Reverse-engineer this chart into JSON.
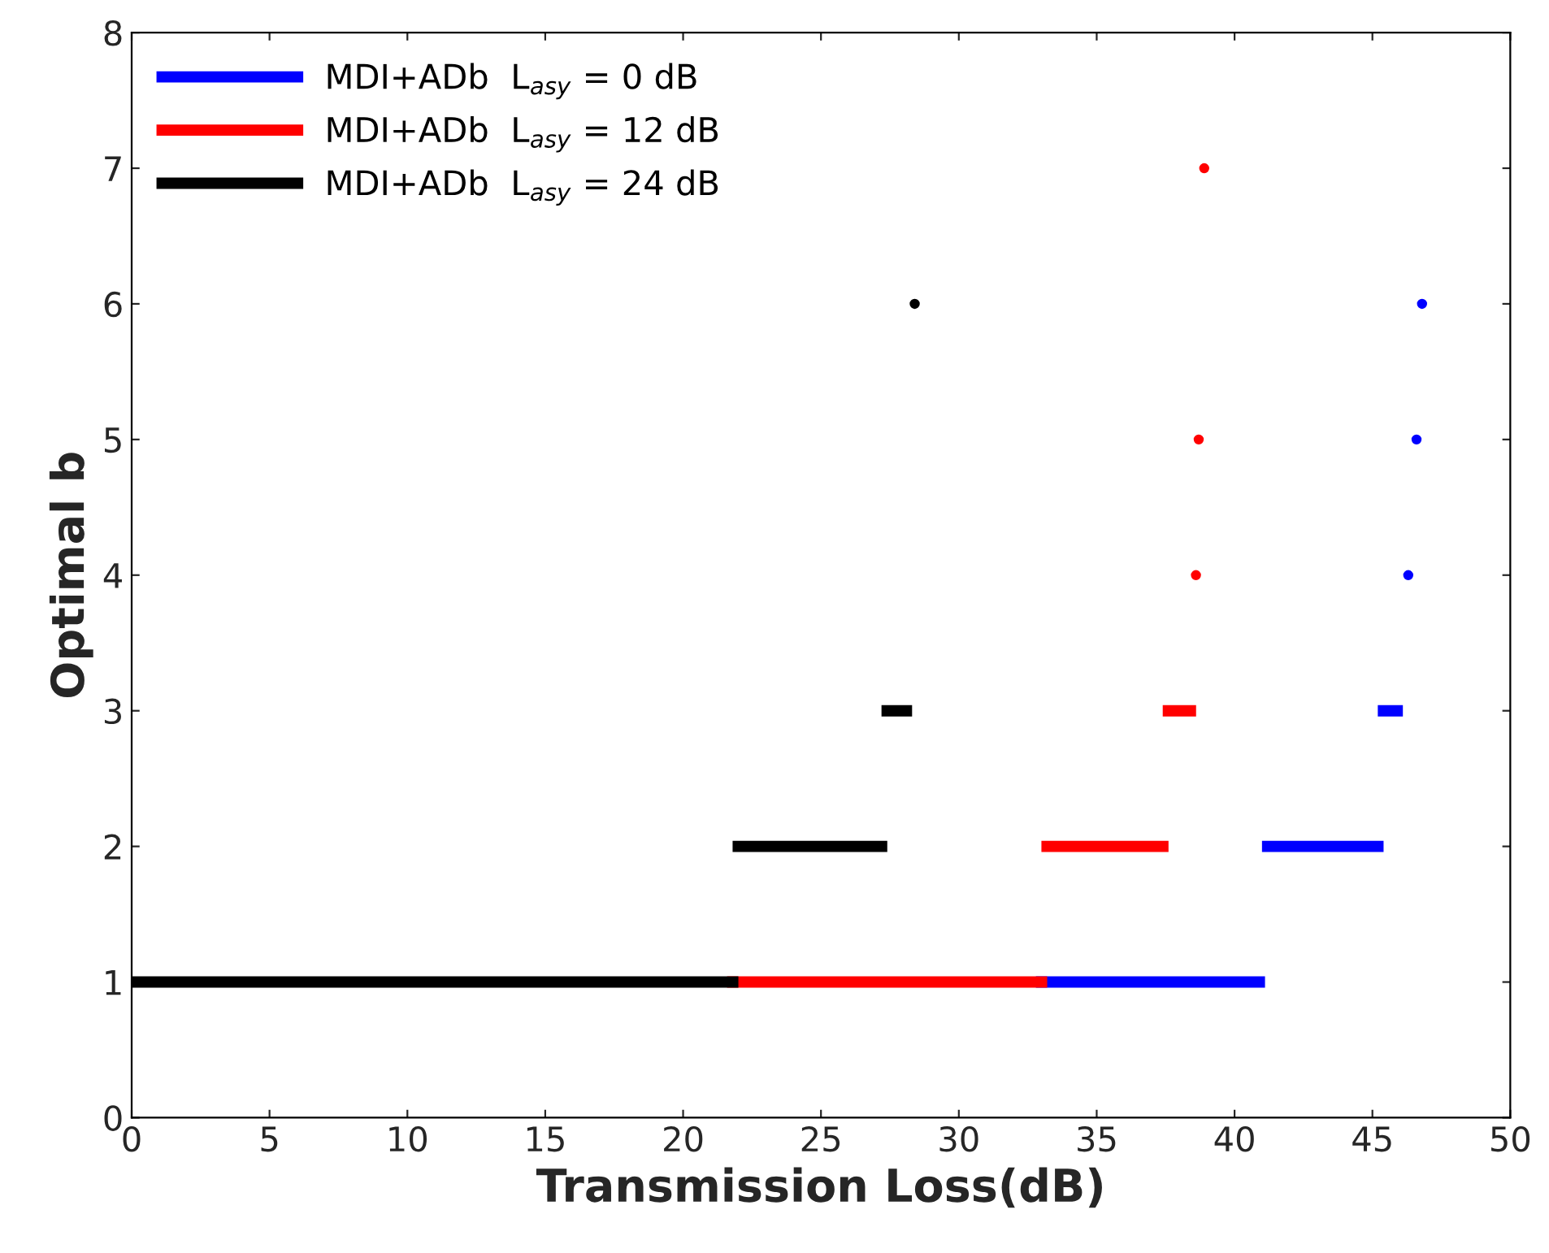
{
  "chart_data": {
    "type": "line",
    "xlabel": "Transmission Loss(dB)",
    "ylabel": "Optimal b",
    "xlim": [
      0,
      50
    ],
    "ylim": [
      0,
      8
    ],
    "xticks": [
      0,
      5,
      10,
      15,
      20,
      25,
      30,
      35,
      40,
      45,
      50
    ],
    "yticks": [
      0,
      1,
      2,
      3,
      4,
      5,
      6,
      7,
      8
    ],
    "grid": false,
    "legend": "top left",
    "marker": "none",
    "line_style": "solid",
    "series": [
      {
        "name": "MDI+ADb  L$_{asy}$ = 0 dB",
        "color": "#0000ff",
        "x": [
          33.0,
          40.9,
          null,
          41.2,
          45.2,
          null,
          45.4,
          45.9
        ],
        "values": [
          1,
          1,
          null,
          2,
          2,
          null,
          3,
          3
        ]
      },
      {
        "name": "MDI+ADb  L$_{asy}$ = 12 dB",
        "color": "#ff0000",
        "x": [
          21.8,
          33.0,
          null,
          33.2,
          37.4,
          null,
          37.6,
          38.4
        ],
        "values": [
          1,
          1,
          null,
          2,
          2,
          null,
          3,
          3
        ]
      },
      {
        "name": "MDI+ADb  L$_{asy}$ = 24 dB",
        "color": "#000000",
        "x": [
          0,
          21.8,
          null,
          22.0,
          27.2,
          null,
          27.4,
          28.1
        ],
        "values": [
          1,
          1,
          null,
          2,
          2,
          null,
          3,
          3
        ]
      },
      {
        "type": "scatter",
        "color": "#0000ff",
        "marker": "circle",
        "x": [
          46.3,
          46.6,
          46.8
        ],
        "values": [
          4,
          5,
          6
        ]
      },
      {
        "type": "scatter",
        "color": "#ff0000",
        "marker": "circle",
        "x": [
          38.6,
          38.7,
          38.9
        ],
        "values": [
          4,
          5,
          7
        ]
      },
      {
        "type": "scatter",
        "color": "#000000",
        "marker": "circle",
        "x": [
          28.4
        ],
        "values": [
          6
        ]
      }
    ]
  }
}
